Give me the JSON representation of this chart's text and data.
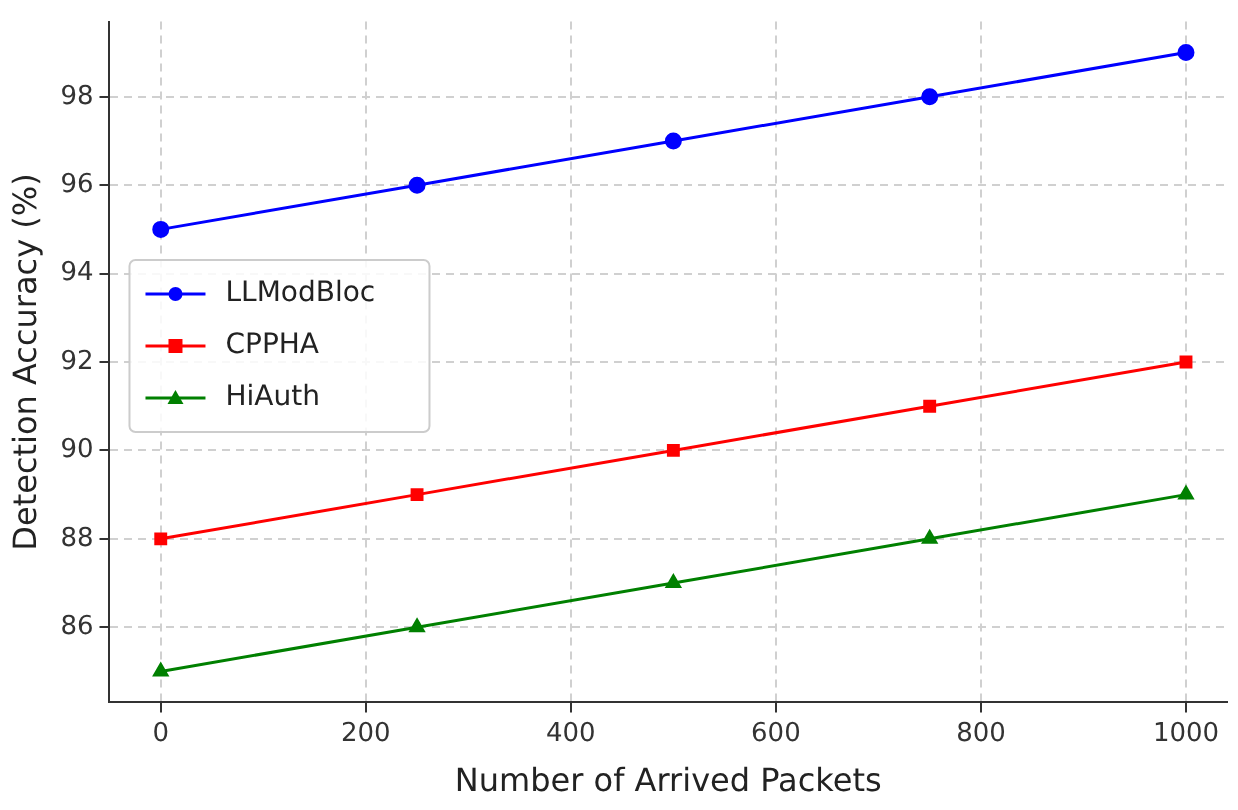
{
  "chart_data": {
    "type": "line",
    "xlabel": "Number of Arrived Packets",
    "ylabel": "Detection Accuracy (%)",
    "x": [
      0,
      250,
      500,
      750,
      1000
    ],
    "series": [
      {
        "name": "LLModBloc",
        "color": "#0000ff",
        "marker": "circle",
        "values": [
          95,
          96,
          97,
          98,
          99
        ]
      },
      {
        "name": "CPPHA",
        "color": "#ff0000",
        "marker": "square",
        "values": [
          88,
          89,
          90,
          91,
          92
        ]
      },
      {
        "name": "HiAuth",
        "color": "#008000",
        "marker": "triangle",
        "values": [
          85,
          86,
          87,
          88,
          89
        ]
      }
    ],
    "xlim": [
      -50,
      1040
    ],
    "xticks": [
      0,
      200,
      400,
      600,
      800,
      1000
    ],
    "ylim": [
      84.3,
      99.7
    ],
    "yticks": [
      86,
      88,
      90,
      92,
      94,
      96,
      98
    ],
    "grid": true,
    "legend": "left"
  }
}
